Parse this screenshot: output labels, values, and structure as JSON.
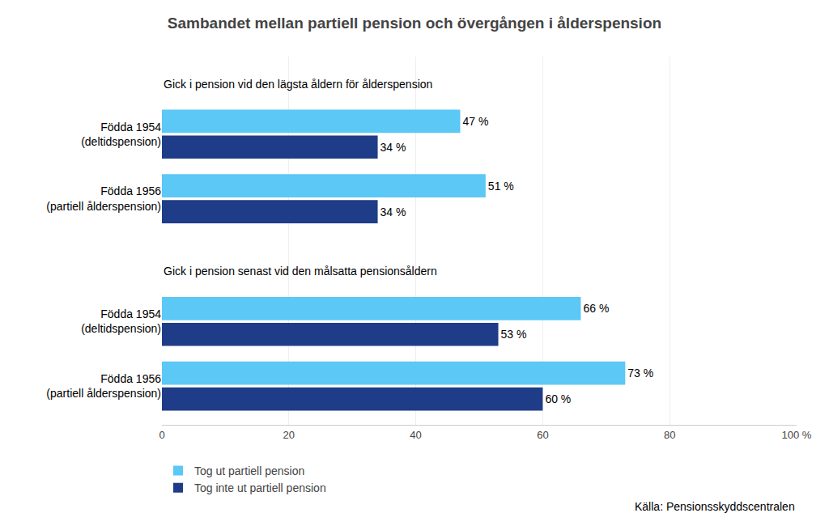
{
  "chart_data": {
    "type": "bar",
    "orientation": "horizontal",
    "title": "Sambandet mellan partiell pension och övergången i ålderspension",
    "annotations": [
      "Gick i pension vid den lägsta åldern för ålderspension",
      "Gick i pension senast vid den målsatta pensionsåldern"
    ],
    "source": "Källa: Pensionsskyddscentralen",
    "categories": [
      "Födda 1954\n(deltidspension)",
      "Födda 1956\n(partiell ålderspension)",
      "Födda 1954\n(deltidspension)",
      "Födda 1956\n(partiell ålderspension)"
    ],
    "series": [
      {
        "name": "Tog ut partiell pension",
        "color": "#5BC8F5",
        "values": [
          47,
          51,
          66,
          73
        ],
        "value_labels": [
          "47 %",
          "51 %",
          "66 %",
          "73 %"
        ]
      },
      {
        "name": "Tog inte ut partiell pension",
        "color": "#1F3C88",
        "values": [
          34,
          34,
          53,
          60
        ],
        "value_labels": [
          "34 %",
          "34 %",
          "53 %",
          "60 %"
        ]
      }
    ],
    "xlim": [
      0,
      100
    ],
    "xticks": [
      0,
      20,
      40,
      60,
      80,
      {
        "value": 100,
        "label": "100 %"
      }
    ],
    "grid": true,
    "legend": "lower left",
    "data_labels": true
  }
}
